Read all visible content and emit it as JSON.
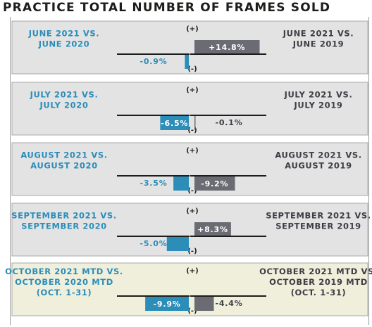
{
  "title": "PRACTICE TOTAL NUMBER OF FRAMES SOLD",
  "colors": {
    "left_bar": "#2b8db8",
    "right_bar": "#6b6b74",
    "left_text": "#2b8db8",
    "right_text": "#3d3d45",
    "panel_bg": "#e3e3e4",
    "panel_bg_highlight": "#f0efdc",
    "panel_border": "#a8a8a8",
    "axis": "#1d1d1b"
  },
  "chart_data": {
    "type": "bar",
    "positive_label": "(+)",
    "negative_label": "(-)",
    "max_abs": 16,
    "panels": [
      {
        "left_label": [
          "JUNE 2021 VS.",
          "JUNE 2020"
        ],
        "right_label": [
          "JUNE 2021 VS.",
          "JUNE 2019"
        ],
        "left_value": -0.9,
        "left_value_label": "-0.9%",
        "right_value": 14.8,
        "right_value_label": "+14.8%",
        "highlight": false
      },
      {
        "left_label": [
          "JULY 2021 VS.",
          "JULY 2020"
        ],
        "right_label": [
          "JULY 2021 VS.",
          "JULY 2019"
        ],
        "left_value": -6.5,
        "left_value_label": "-6.5%",
        "right_value": -0.1,
        "right_value_label": "-0.1%",
        "highlight": false
      },
      {
        "left_label": [
          "AUGUST 2021 VS.",
          "AUGUST 2020"
        ],
        "right_label": [
          "AUGUST 2021 VS.",
          "AUGUST 2019"
        ],
        "left_value": -3.5,
        "left_value_label": "-3.5%",
        "right_value": -9.2,
        "right_value_label": "-9.2%",
        "highlight": false
      },
      {
        "left_label": [
          "SEPTEMBER 2021 VS.",
          "SEPTEMBER 2020"
        ],
        "right_label": [
          "SEPTEMBER 2021 VS.",
          "SEPTEMBER 2019"
        ],
        "left_value": -5.0,
        "left_value_label": "-5.0%",
        "right_value": 8.3,
        "right_value_label": "+8.3%",
        "highlight": false
      },
      {
        "left_label": [
          "OCTOBER 2021 MTD VS.",
          "OCTOBER 2020 MTD",
          "(OCT. 1-31)"
        ],
        "right_label": [
          "OCTOBER 2021 MTD VS.",
          "OCTOBER 2019 MTD",
          "(OCT. 1-31)"
        ],
        "left_value": -9.9,
        "left_value_label": "-9.9%",
        "right_value": -4.4,
        "right_value_label": "-4.4%",
        "highlight": true
      }
    ]
  }
}
